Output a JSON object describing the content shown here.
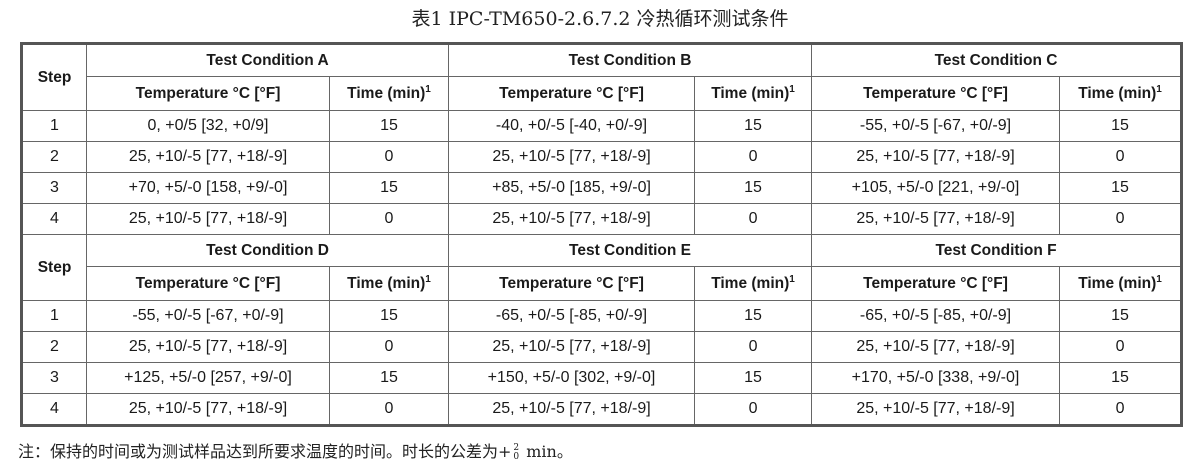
{
  "title": "表1  IPC-TM650-2.6.7.2 冷热循环测试条件",
  "headers": {
    "step": "Step",
    "temperature": "Temperature °C [°F]",
    "time": "Time (min)",
    "time_footnote": "1"
  },
  "groups": [
    {
      "conditions": [
        "Test Condition A",
        "Test Condition B",
        "Test Condition C"
      ],
      "rows": [
        {
          "step": "1",
          "cells": [
            "0, +0/5 [32, +0/9]",
            "15",
            "-40, +0/-5 [-40, +0/-9]",
            "15",
            "-55, +0/-5 [-67, +0/-9]",
            "15"
          ]
        },
        {
          "step": "2",
          "cells": [
            "25, +10/-5 [77, +18/-9]",
            "0",
            "25, +10/-5 [77, +18/-9]",
            "0",
            "25, +10/-5 [77, +18/-9]",
            "0"
          ]
        },
        {
          "step": "3",
          "cells": [
            "+70, +5/-0 [158, +9/-0]",
            "15",
            "+85, +5/-0 [185, +9/-0]",
            "15",
            "+105, +5/-0 [221, +9/-0]",
            "15"
          ]
        },
        {
          "step": "4",
          "cells": [
            "25, +10/-5 [77, +18/-9]",
            "0",
            "25, +10/-5 [77, +18/-9]",
            "0",
            "25, +10/-5 [77, +18/-9]",
            "0"
          ]
        }
      ]
    },
    {
      "conditions": [
        "Test Condition D",
        "Test Condition E",
        "Test Condition F"
      ],
      "rows": [
        {
          "step": "1",
          "cells": [
            "-55, +0/-5 [-67, +0/-9]",
            "15",
            "-65, +0/-5 [-85, +0/-9]",
            "15",
            "-65, +0/-5 [-85, +0/-9]",
            "15"
          ]
        },
        {
          "step": "2",
          "cells": [
            "25, +10/-5 [77, +18/-9]",
            "0",
            "25, +10/-5 [77, +18/-9]",
            "0",
            "25, +10/-5 [77, +18/-9]",
            "0"
          ]
        },
        {
          "step": "3",
          "cells": [
            "+125, +5/-0 [257, +9/-0]",
            "15",
            "+150, +5/-0 [302, +9/-0]",
            "15",
            "+170, +5/-0 [338, +9/-0]",
            "15"
          ]
        },
        {
          "step": "4",
          "cells": [
            "25, +10/-5 [77, +18/-9]",
            "0",
            "25, +10/-5 [77, +18/-9]",
            "0",
            "25, +10/-5 [77, +18/-9]",
            "0"
          ]
        }
      ]
    }
  ],
  "note": {
    "prefix": "注：保持的时间或为测试样品达到所要求温度的时间。时长的公差为+",
    "tol_upper": "2",
    "tol_lower": "0",
    "suffix": " min。"
  }
}
